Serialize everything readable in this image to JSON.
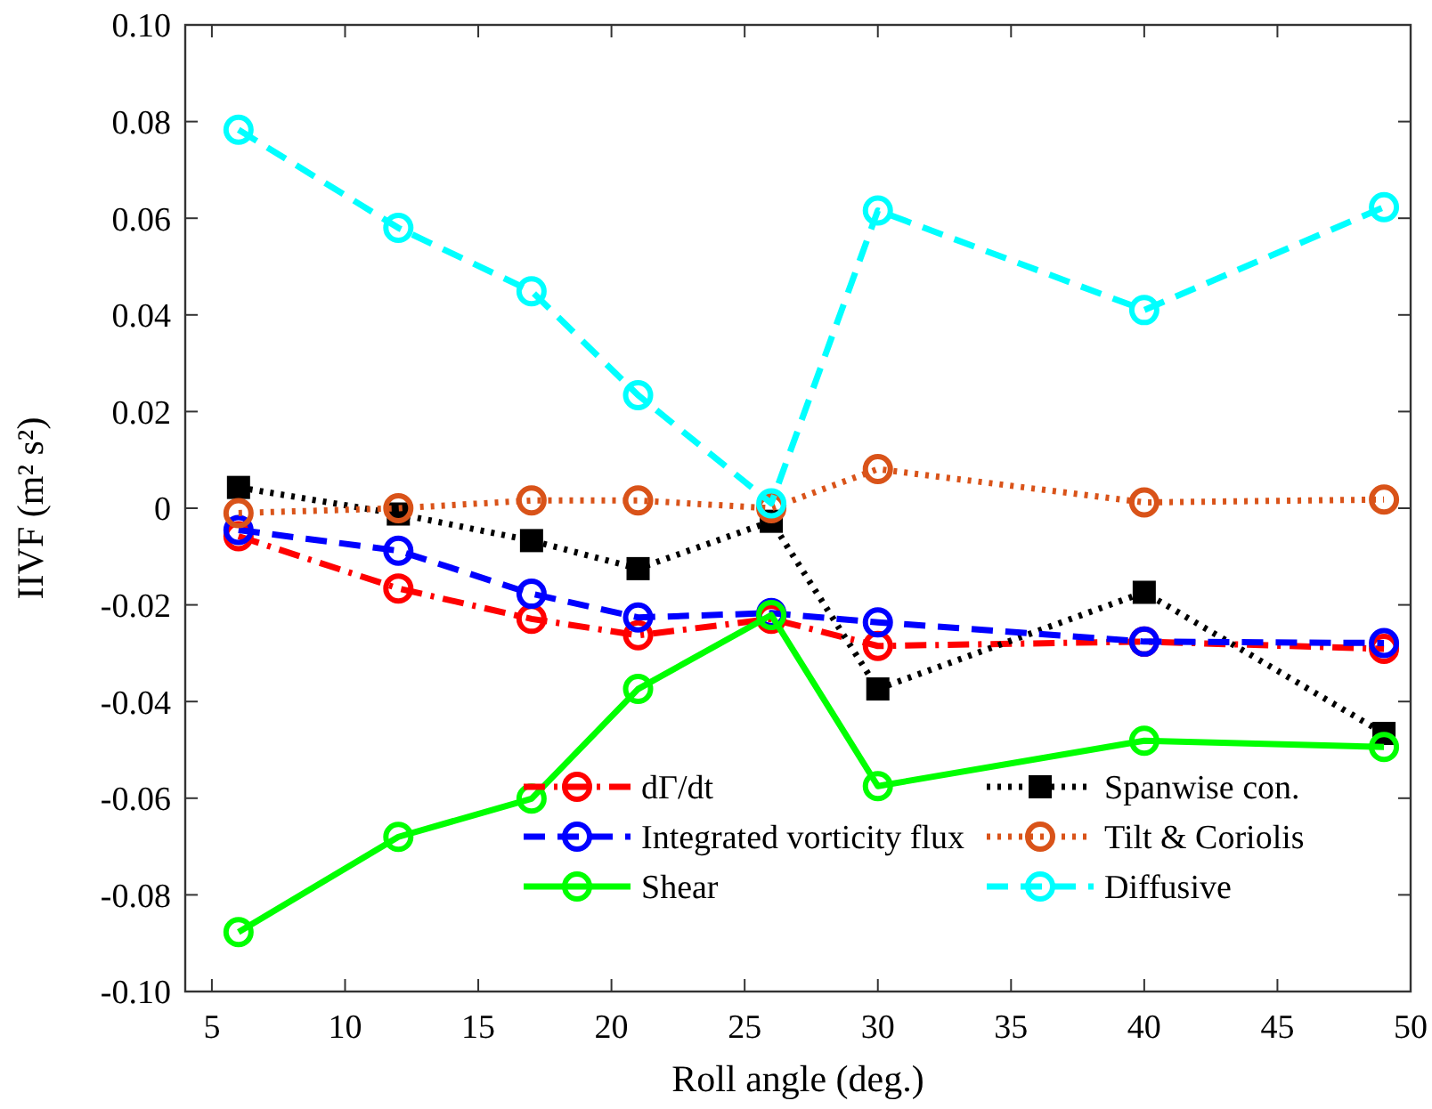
{
  "chart_data": {
    "type": "line",
    "xlabel": "Roll angle (deg.)",
    "ylabel": "IIVF (m² s²)",
    "x": [
      6,
      12,
      17,
      21,
      26,
      30,
      40,
      49
    ],
    "xlim": [
      4,
      50
    ],
    "xticks": [
      5,
      10,
      15,
      20,
      25,
      30,
      35,
      40,
      45,
      50
    ],
    "ylim": [
      -0.1,
      0.1
    ],
    "yticks": [
      {
        "value": -0.1,
        "label": "-0.10"
      },
      -0.08,
      -0.06,
      -0.04,
      -0.02,
      0,
      0.02,
      0.04,
      0.06,
      0.08,
      {
        "value": 0.1,
        "label": "0.10"
      }
    ],
    "grid": false,
    "legend": "bottom",
    "series": [
      {
        "name": "dΓ/dt",
        "color": "#ff0000",
        "line_style": "dashdot",
        "marker": "circle",
        "values": [
          -0.0058,
          -0.0166,
          -0.0229,
          -0.0263,
          -0.0229,
          -0.0285,
          -0.0276,
          -0.0291
        ]
      },
      {
        "name": "Spanwise con.",
        "color": "#000000",
        "line_style": "dotted",
        "marker": "square",
        "values": [
          0.0043,
          -0.0012,
          -0.0067,
          -0.0125,
          -0.0027,
          -0.0374,
          -0.0174,
          -0.0466
        ]
      },
      {
        "name": "Integrated vorticity flux",
        "color": "#0000ff",
        "line_style": "dashed",
        "marker": "circle",
        "values": [
          -0.0045,
          -0.0088,
          -0.0177,
          -0.0226,
          -0.0217,
          -0.0236,
          -0.0276,
          -0.0279
        ]
      },
      {
        "name": "Tilt & Coriolis",
        "color": "#d95319",
        "line_style": "dotted",
        "marker": "circle",
        "values": [
          -0.001,
          0,
          0.0016,
          0.0016,
          0,
          0.0081,
          0.0012,
          0.0018
        ]
      },
      {
        "name": "Shear",
        "color": "#00ff00",
        "line_style": "solid",
        "marker": "circle",
        "values": [
          -0.0877,
          -0.068,
          -0.0601,
          -0.0374,
          -0.0221,
          -0.0575,
          -0.0481,
          -0.0494
        ]
      },
      {
        "name": "Diffusive",
        "color": "#00ffff",
        "line_style": "dashed",
        "marker": "circle",
        "values": [
          0.0783,
          0.058,
          0.0449,
          0.0234,
          0.001,
          0.0616,
          0.041,
          0.0623
        ]
      }
    ]
  }
}
